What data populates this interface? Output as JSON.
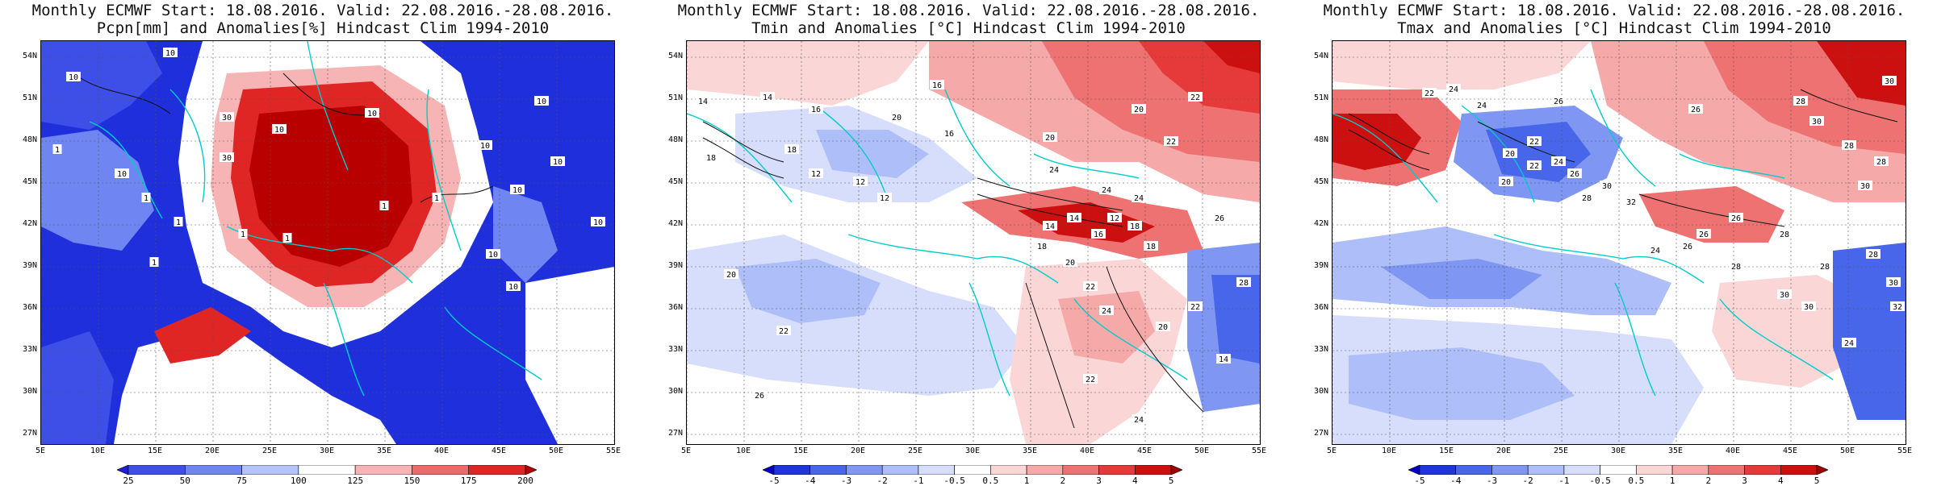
{
  "panels": [
    {
      "id": "pcpn",
      "title_line1": "Monthly ECMWF Start: 18.08.2016. Valid: 22.08.2016.-28.08.2016.",
      "title_line2": "Pcpn[mm] and Anomalies[%] Hindcast Clim 1994-2010",
      "colorbar": {
        "labels": [
          "25",
          "50",
          "75",
          "100",
          "125",
          "150",
          "175",
          "200"
        ],
        "colors": [
          "#1f1fd6",
          "#3d4fe6",
          "#6f86f2",
          "#b4c3f8",
          "#ffffff",
          "#f6b4b4",
          "#ef6a6a",
          "#e02525",
          "#b80000"
        ]
      },
      "contour_labels": [
        "10",
        "10",
        "10",
        "10",
        "10",
        "10",
        "10",
        "10",
        "1",
        "1",
        "1",
        "1",
        "1",
        "1",
        "1",
        "1",
        "30",
        "30",
        "10",
        "10",
        "10",
        "10"
      ]
    },
    {
      "id": "tmin",
      "title_line1": "Monthly ECMWF Start: 18.08.2016. Valid: 22.08.2016.-28.08.2016.",
      "title_line2": "Tmin and Anomalies [°C] Hindcast Clim 1994-2010",
      "colorbar": {
        "labels": [
          "-5",
          "-4",
          "-3",
          "-2",
          "-1",
          "-0.5",
          "0.5",
          "1",
          "2",
          "3",
          "4",
          "5"
        ],
        "colors": [
          "#0000c8",
          "#1f35dc",
          "#4766ea",
          "#7f97f3",
          "#aebef8",
          "#d6defb",
          "#ffffff",
          "#fbd6d6",
          "#f6a9a9",
          "#ef7272",
          "#e63a3a",
          "#cc0f0f",
          "#a00000"
        ]
      },
      "contour_labels": [
        "14",
        "14",
        "16",
        "16",
        "16",
        "18",
        "18",
        "20",
        "20",
        "20",
        "22",
        "22",
        "24",
        "24",
        "24",
        "26",
        "12",
        "12",
        "12",
        "14",
        "14",
        "16",
        "18",
        "20",
        "22",
        "24",
        "20",
        "22",
        "14",
        "28",
        "20",
        "22",
        "26",
        "12",
        "18",
        "18",
        "22",
        "24"
      ]
    },
    {
      "id": "tmax",
      "title_line1": "Monthly ECMWF Start: 18.08.2016. Valid: 22.08.2016.-28.08.2016.",
      "title_line2": "Tmax and Anomalies [°C] Hindcast Clim 1994-2010",
      "colorbar": {
        "labels": [
          "-5",
          "-4",
          "-3",
          "-2",
          "-1",
          "-0.5",
          "0.5",
          "1",
          "2",
          "3",
          "4",
          "5"
        ],
        "colors": [
          "#0000c8",
          "#1f35dc",
          "#4766ea",
          "#7f97f3",
          "#aebef8",
          "#d6defb",
          "#ffffff",
          "#fbd6d6",
          "#f6a9a9",
          "#ef7272",
          "#e63a3a",
          "#cc0f0f",
          "#a00000"
        ]
      },
      "contour_labels": [
        "22",
        "24",
        "24",
        "26",
        "26",
        "28",
        "28",
        "28",
        "30",
        "30",
        "30",
        "20",
        "22",
        "24",
        "26",
        "28",
        "30",
        "32",
        "26",
        "24",
        "26",
        "28",
        "30",
        "30",
        "28",
        "24",
        "28",
        "30",
        "32",
        "20",
        "22",
        "26",
        "28"
      ]
    }
  ],
  "lat_labels": [
    "54N",
    "51N",
    "48N",
    "45N",
    "42N",
    "39N",
    "36N",
    "33N",
    "30N",
    "27N"
  ],
  "lon_labels": [
    "5E",
    "10E",
    "15E",
    "20E",
    "25E",
    "30E",
    "35E",
    "40E",
    "45E",
    "50E",
    "55E"
  ]
}
